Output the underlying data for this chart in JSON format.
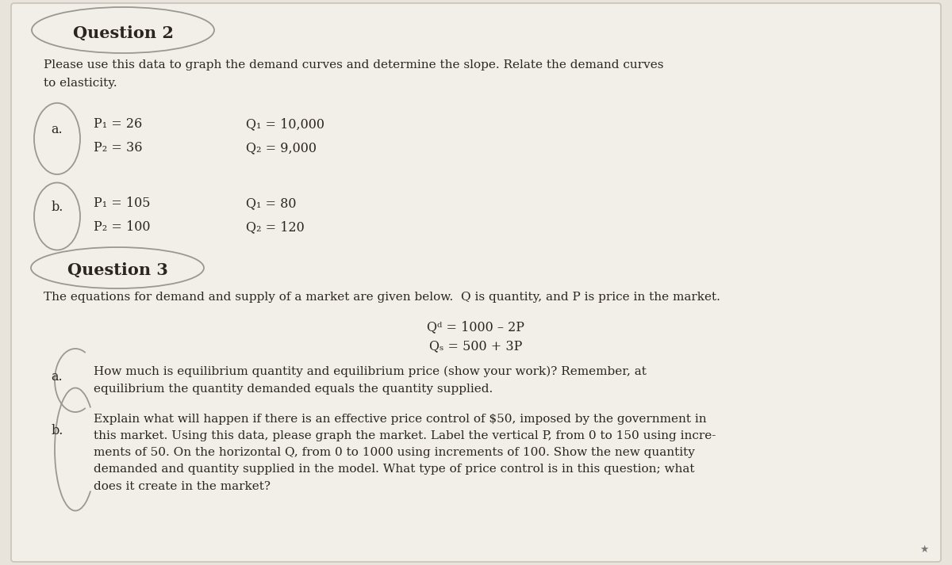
{
  "bg_color": "#e8e4dc",
  "paper_color": "#f2efe8",
  "title_q2": "Question 2",
  "subtitle_q2_line1": "Please use this data to graph the demand curves and determine the slope. Relate the demand curves",
  "subtitle_q2_line2": "to elasticity.",
  "q2a_label": "a.",
  "q2a_line1_left": "P₁ = 26",
  "q2a_line1_right": "Q₁ = 10,000",
  "q2a_line2_left": "P₂ = 36",
  "q2a_line2_right": "Q₂ = 9,000",
  "q2b_label": "b.",
  "q2b_line1_left": "P₁ = 105",
  "q2b_line1_right": "Q₁ = 80",
  "q2b_line2_left": "P₂ = 100",
  "q2b_line2_right": "Q₂ = 120",
  "title_q3": "Question 3",
  "subtitle_q3": "The equations for demand and supply of a market are given below.  Q is quantity, and P is price in the market.",
  "eq1": "Qᵈ = 1000 – 2P",
  "eq2": "Qₛ = 500 + 3P",
  "q3a_label": "a.",
  "q3a_text": "How much is equilibrium quantity and equilibrium price (show your work)? Remember, at\nequilibrium the quantity demanded equals the quantity supplied.",
  "q3b_label": "b.",
  "q3b_text": "Explain what will happen if there is an effective price control of $50, imposed by the government in\nthis market. Using this data, please graph the market. Label the vertical P, from 0 to 150 using incre-\nments of 50. On the horizontal Q, from 0 to 1000 using increments of 100. Show the new quantity\ndemanded and quantity supplied in the model. What type of price control is in this question; what\ndoes it create in the market?",
  "footnote": "★",
  "ellipse_color": "#999990",
  "text_color": "#2a2520",
  "font_size_title": 15,
  "font_size_body": 11,
  "font_size_data": 11.5
}
